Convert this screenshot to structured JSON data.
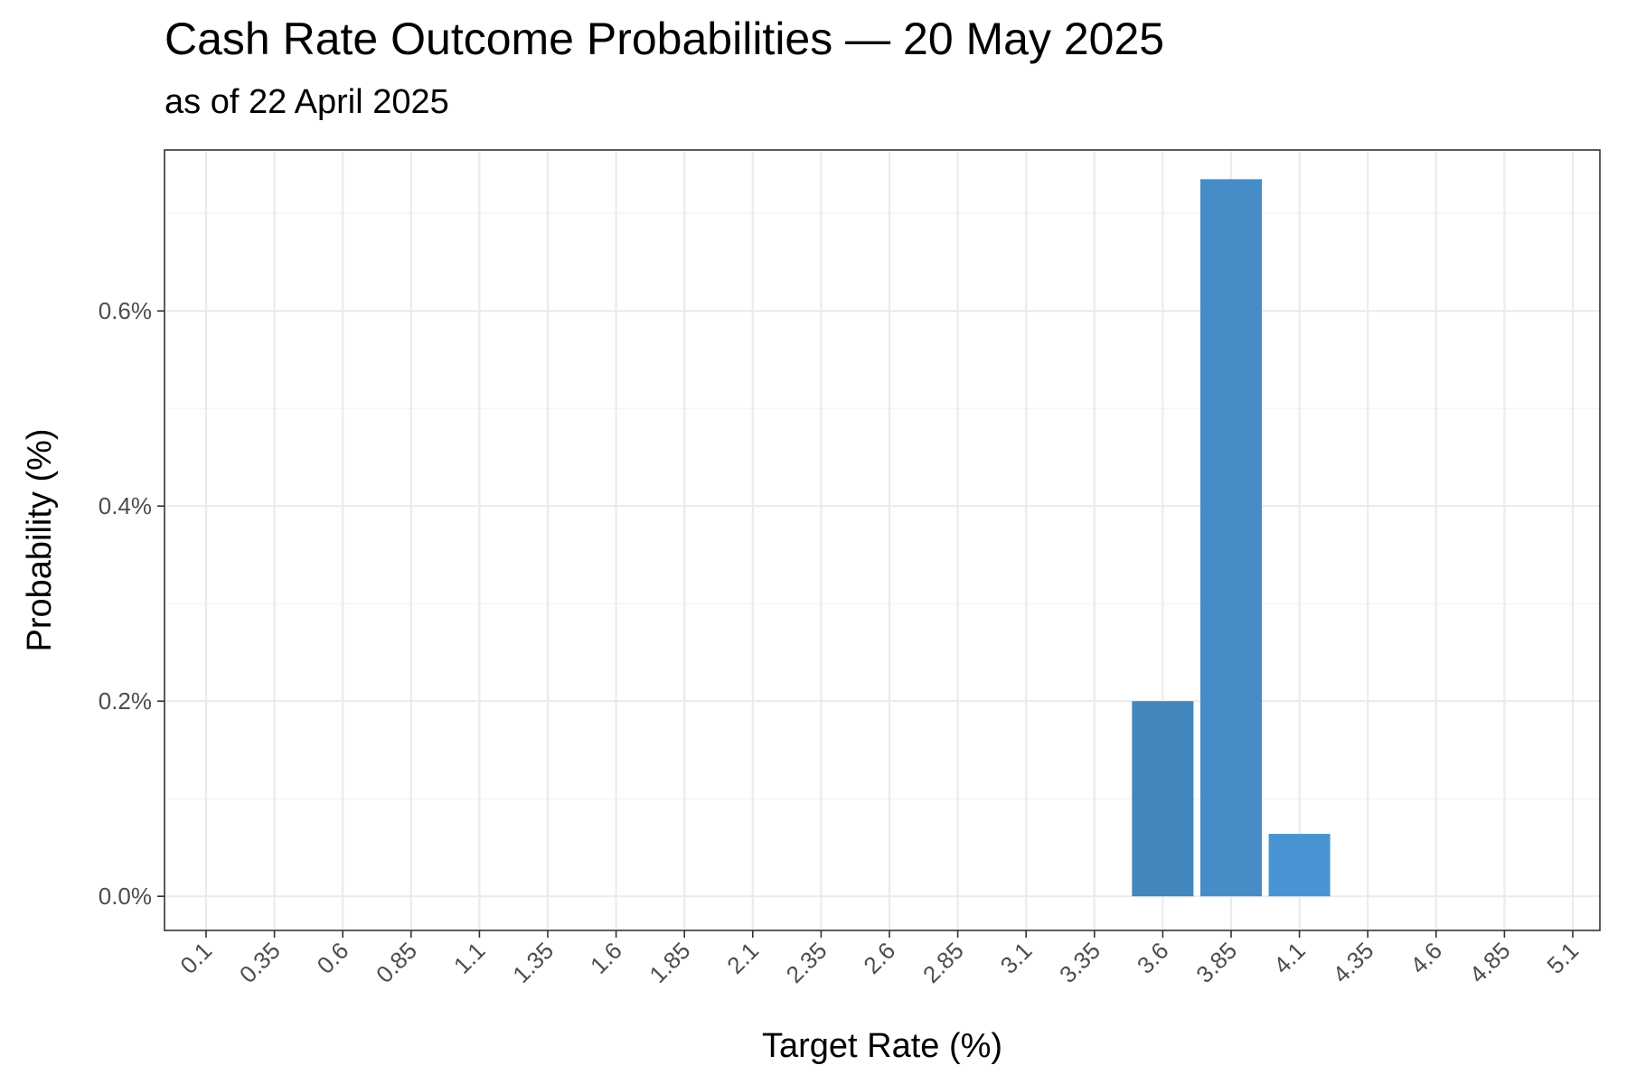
{
  "chart_data": {
    "type": "bar",
    "title": "Cash Rate Outcome Probabilities — 20 May 2025",
    "subtitle": "as of 22 April 2025",
    "xlabel": "Target Rate (%)",
    "ylabel": "Probability (%)",
    "x_tick_labels": [
      "0.1",
      "0.35",
      "0.6",
      "0.85",
      "1.1",
      "1.35",
      "1.6",
      "1.85",
      "2.1",
      "2.35",
      "2.6",
      "2.85",
      "3.1",
      "3.35",
      "3.6",
      "3.85",
      "4.1",
      "4.35",
      "4.6",
      "4.85",
      "5.1"
    ],
    "x_range": [
      0.1,
      5.1
    ],
    "x_step": 0.25,
    "y_ticks": [
      0,
      0.2,
      0.4,
      0.6
    ],
    "y_tick_labels": [
      "0.0%",
      "0.2%",
      "0.4%",
      "0.6%"
    ],
    "ylim": [
      -0.035,
      0.765
    ],
    "grid": true,
    "bars": [
      {
        "x": 3.6,
        "value": 0.2,
        "color": "#4287bd"
      },
      {
        "x": 3.85,
        "value": 0.735,
        "color": "#468dc7"
      },
      {
        "x": 4.1,
        "value": 0.064,
        "color": "#4894d2"
      }
    ]
  }
}
